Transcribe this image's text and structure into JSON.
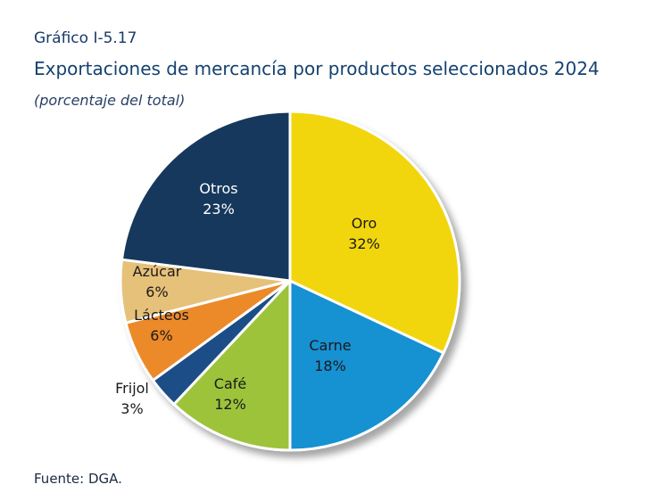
{
  "figure": {
    "number": "Gráfico I-5.17",
    "title": "Exportaciones de mercancía por productos seleccionados 2024",
    "subtitle": "(porcentaje del total)",
    "source": "Fuente: DGA."
  },
  "chart_data": {
    "type": "pie",
    "title": "Exportaciones de mercancía por productos seleccionados 2024",
    "subtitle": "(porcentaje del total)",
    "start": "12 o'clock",
    "direction": "clockwise",
    "slices": [
      {
        "label": "Oro",
        "value": 32,
        "value_label": "32%",
        "color": "#f2d60c",
        "label_color": "#1a1a1a"
      },
      {
        "label": "Carne",
        "value": 18,
        "value_label": "18%",
        "color": "#1591d2",
        "label_color": "#1a1a1a"
      },
      {
        "label": "Café",
        "value": 12,
        "value_label": "12%",
        "color": "#9dc33b",
        "label_color": "#1a1a1a"
      },
      {
        "label": "Frijol",
        "value": 3,
        "value_label": "3%",
        "color": "#1b4d86",
        "label_color": "#1a1a1a"
      },
      {
        "label": "Lácteos",
        "value": 6,
        "value_label": "6%",
        "color": "#ec8a2c",
        "label_color": "#1a1a1a"
      },
      {
        "label": "Azúcar",
        "value": 6,
        "value_label": "6%",
        "color": "#e6c17a",
        "label_color": "#1a1a1a"
      },
      {
        "label": "Otros",
        "value": 23,
        "value_label": "23%",
        "color": "#14385c",
        "label_color": "#ffffff"
      }
    ],
    "legend": "none",
    "labels_inside": true
  }
}
